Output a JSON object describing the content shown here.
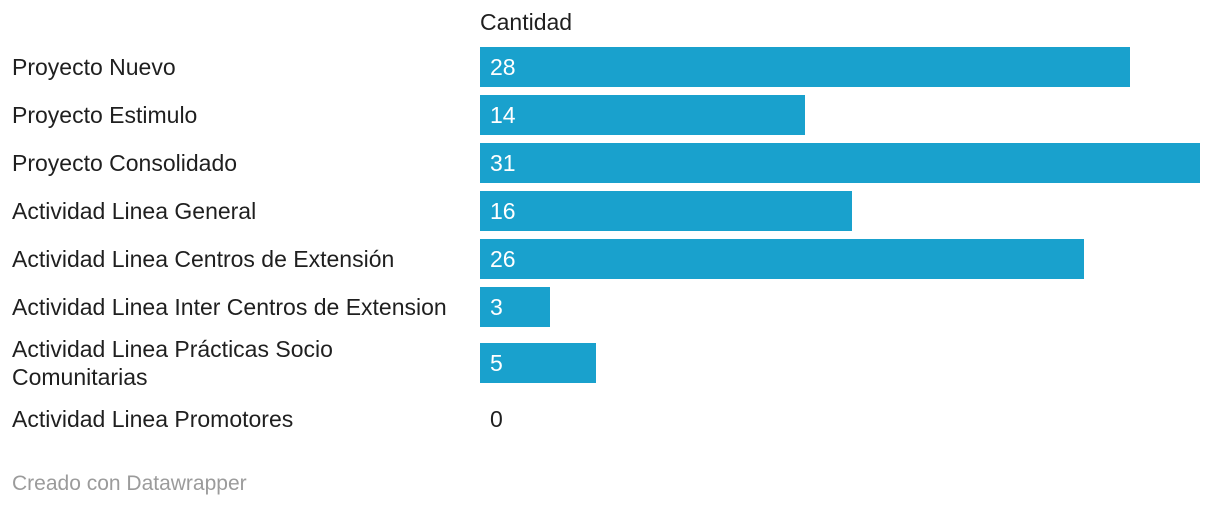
{
  "chart": {
    "value_column_header": "Cantidad",
    "footer_text": "Creado con Datawrapper",
    "bar_color": "#19a1cd",
    "label_color": "#1f1f1f",
    "bar_value_color": "#ffffff",
    "footer_color": "#9b9b9b"
  },
  "chart_data": {
    "type": "bar",
    "orientation": "horizontal",
    "title": "",
    "value_header": "Cantidad",
    "categories": [
      "Proyecto Nuevo",
      "Proyecto Estimulo",
      "Proyecto Consolidado",
      "Actividad Linea General",
      "Actividad Linea Centros de Extensión",
      "Actividad Linea Inter Centros de Extension",
      "Actividad Linea Prácticas Socio Comunitarias",
      "Actividad Linea Promotores"
    ],
    "values": [
      28,
      14,
      31,
      16,
      26,
      3,
      5,
      0
    ],
    "xlim": [
      0,
      31
    ],
    "value_labels_inside_bars": true,
    "attribution": "Creado con Datawrapper"
  }
}
